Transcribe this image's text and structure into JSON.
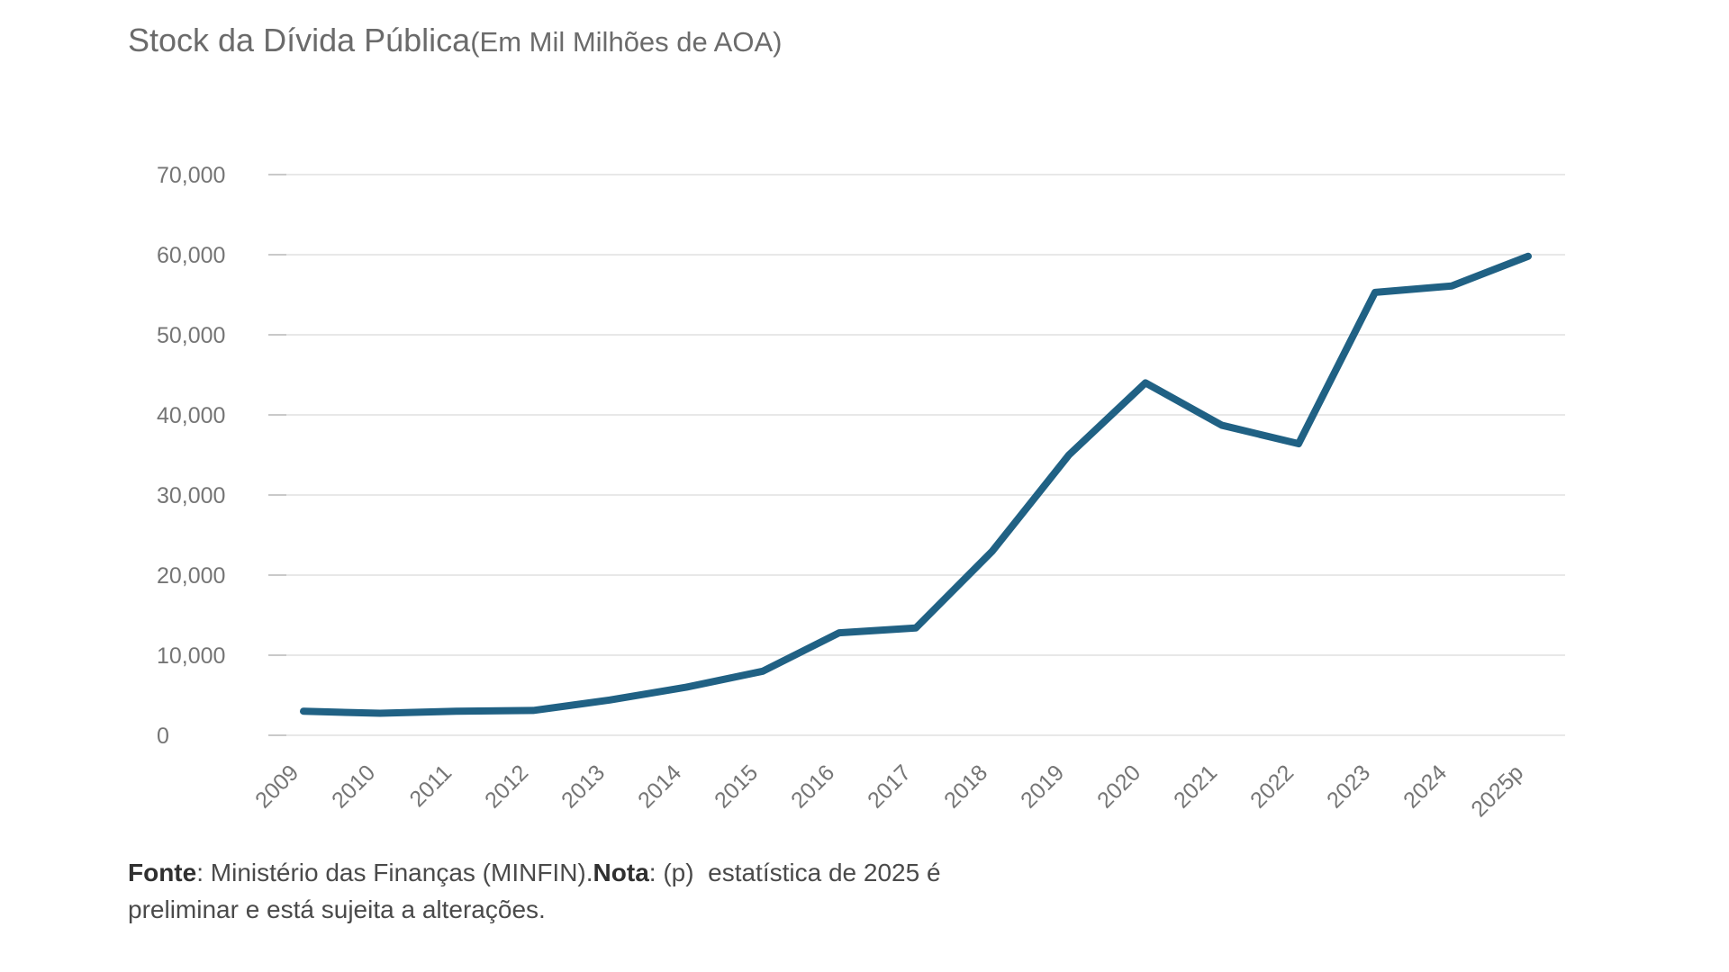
{
  "title": {
    "main": "Stock da Dívida Pública",
    "sub": "(Em Mil Milhões de AOA)"
  },
  "footnote": {
    "segments": [
      {
        "text": "Fonte",
        "bold": true
      },
      {
        "text": ": Ministério das Finanças (MINFIN).",
        "bold": false
      },
      {
        "text": "Nota",
        "bold": true
      },
      {
        "text": ": (p)  estatística de 2025 é\npreliminar e está sujeita a alterações.",
        "bold": false
      }
    ]
  },
  "chart_data": {
    "type": "line",
    "title": "Stock da Dívida Pública (Em Mil Milhões de AOA)",
    "series_name": "Stock da Dívida Pública",
    "categories": [
      "2009",
      "2010",
      "2011",
      "2012",
      "2013",
      "2014",
      "2015",
      "2016",
      "2017",
      "2018",
      "2019",
      "2020",
      "2021",
      "2022",
      "2023",
      "2024",
      "2025p"
    ],
    "values": [
      3000,
      2750,
      3000,
      3100,
      4400,
      6000,
      8000,
      12800,
      13400,
      23000,
      35000,
      44000,
      38700,
      36400,
      55300,
      56100,
      59800
    ],
    "xlabel": "",
    "ylabel": "",
    "ylim": [
      0,
      70000
    ],
    "ytick_step": 10000,
    "ytick_labels": [
      "0",
      "10,000",
      "20,000",
      "30,000",
      "40,000",
      "50,000",
      "60,000",
      "70,000"
    ],
    "grid": true,
    "legend": "none",
    "line_color": "#206184",
    "label_color": "#757575",
    "gridline_color": "#e8e8e8",
    "tick_color": "#c9c9c9",
    "background_color": "#ffffff"
  }
}
